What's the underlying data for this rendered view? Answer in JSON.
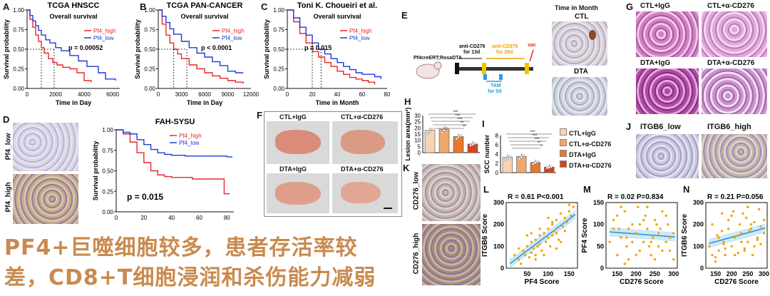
{
  "panels": {
    "A": {
      "letter": "A",
      "title": "TCGA HNSCC",
      "subtitle": "Overall survival",
      "xlabel": "Time in Day",
      "ylabel": "Survival probability",
      "pvalue": "p = 0.00052",
      "legend": [
        "Pf4_high",
        "Pf4_low"
      ],
      "xticks": [
        "0",
        "2000",
        "4000",
        "6000"
      ],
      "yticks": [
        "0.00",
        "0.25",
        "0.50",
        "0.75",
        "1.00"
      ]
    },
    "B": {
      "letter": "B",
      "title": "TCGA PAN-CANCER",
      "subtitle": "Overall survival",
      "xlabel": "Time in Day",
      "ylabel": "Survival probability",
      "pvalue": "p < 0.0001",
      "legend": [
        "Pf4_high",
        "Pf4_low"
      ],
      "xticks": [
        "0",
        "3000",
        "6000",
        "9000",
        "12000"
      ],
      "yticks": [
        "0.00",
        "0.25",
        "0.50",
        "0.75",
        "1.00"
      ]
    },
    "C": {
      "letter": "C",
      "title": "Toni K. Choueiri et al.",
      "subtitle": "Overall survival",
      "xlabel": "Time in Month",
      "ylabel": "Survival probability",
      "pvalue": "p = 0.015",
      "legend": [
        "Pf4_high",
        "Pf4_low"
      ],
      "xticks": [
        "0",
        "20",
        "40",
        "60",
        "80"
      ],
      "yticks": [
        "0.00",
        "0.25",
        "0.50",
        "0.75",
        "1.00"
      ]
    },
    "D": {
      "letter": "D",
      "title": "FAH-SYSU",
      "ylabel": "Survival probability",
      "pvalue": "p = 0.015",
      "legend": [
        "Pf4_high",
        "Pf4_low"
      ],
      "xticks": [
        "0",
        "20",
        "40",
        "60",
        "80"
      ],
      "yticks": [
        "0.00",
        "0.25",
        "0.50",
        "0.75",
        "1.00"
      ],
      "img_labels": [
        "Pf4_low",
        "Pf4_high"
      ]
    },
    "E": {
      "letter": "E",
      "strain": "Pf4creERT;RosaDTA",
      "anti1": "anti-CD276",
      "anti1b": "for 13d",
      "anti2": "anti-CD276",
      "anti2b": "for 26d",
      "tam": "TAM",
      "tamb": "for 5d",
      "sac": "sac",
      "time_label": "Time in Month",
      "img_labels": [
        "CTL",
        "DTA"
      ]
    },
    "F": {
      "letter": "F",
      "labels": [
        "CTL+IgG",
        "CTL+α-CD276",
        "DTA+IgG",
        "DTA+α-CD276"
      ]
    },
    "G": {
      "letter": "G",
      "labels": [
        "CTL+IgG",
        "CTL+α-CD276",
        "DTA+IgG",
        "DTA+α-CD276"
      ]
    },
    "H": {
      "letter": "H",
      "ylabel": "Lesion area(mm²)",
      "yticks": [
        "0",
        "5",
        "10",
        "15",
        "20",
        "25",
        "30"
      ],
      "stars": [
        "***",
        "***",
        "***",
        "**",
        "**"
      ]
    },
    "I": {
      "letter": "I",
      "ylabel": "SCC number",
      "yticks": [
        "0",
        "2",
        "4",
        "6",
        "8"
      ],
      "stars": [
        "***",
        "***",
        "***",
        "**",
        "*"
      ],
      "legend": [
        "CTL+IgG",
        "CTL+α-CD276",
        "DTA+IgG",
        "DTA+α-CD276"
      ]
    },
    "J": {
      "letter": "J",
      "labels": [
        "ITGB6_low",
        "ITGB6_high"
      ]
    },
    "K": {
      "letter": "K",
      "labels": [
        "CD276_low",
        "CD276_high"
      ]
    },
    "L": {
      "letter": "L",
      "stat": "R = 0.61    P<0.001",
      "xlabel": "PF4 Score",
      "ylabel": "ITGB6 Score",
      "xticks": [
        "50",
        "100",
        "150"
      ],
      "yticks": [
        "0",
        "100",
        "200",
        "300"
      ]
    },
    "M": {
      "letter": "M",
      "stat": "R = 0.02    P=0.834",
      "xlabel": "CD276 Score",
      "ylabel": "PF4 Score",
      "xticks": [
        "150",
        "200",
        "250",
        "300"
      ],
      "yticks": [
        "0",
        "50",
        "100",
        "150"
      ]
    },
    "N": {
      "letter": "N",
      "stat": "R = 0.21    P=0.056",
      "xlabel": "CD276 Score",
      "ylabel": "ITGB6 Score",
      "xticks": [
        "150",
        "200",
        "250",
        "300"
      ],
      "yticks": [
        "0",
        "100",
        "200",
        "300"
      ]
    }
  },
  "caption": {
    "line1": "PF4+巨噬细胞较多，患者存活率较",
    "line2": "差，CD8+T细胞浸润和杀伤能力减弱"
  },
  "colors": {
    "high": "#e8262a",
    "low": "#1f3bd6",
    "orange_dot": "#f4a300",
    "bar1": "#f6d3b3",
    "bar2": "#f1a66a",
    "bar3": "#e8762b",
    "bar4": "#d3451c",
    "fit": "#2f8fd8"
  },
  "chart_data": [
    {
      "type": "line",
      "id": "A",
      "title": "TCGA HNSCC",
      "xlabel": "Time in Day",
      "ylabel": "Survival probability",
      "xlim": [
        0,
        6500
      ],
      "ylim": [
        0,
        1
      ],
      "series": [
        {
          "name": "Pf4_high",
          "x": [
            0,
            200,
            400,
            600,
            800,
            1000,
            1200,
            1500,
            1800,
            2100,
            2500,
            3000,
            3500,
            4000,
            4500
          ],
          "values": [
            1,
            0.88,
            0.78,
            0.68,
            0.6,
            0.52,
            0.45,
            0.38,
            0.33,
            0.3,
            0.27,
            0.25,
            0.2,
            0.1,
            0.08
          ]
        },
        {
          "name": "Pf4_low",
          "x": [
            0,
            200,
            400,
            600,
            800,
            1000,
            1300,
            1600,
            2000,
            2400,
            3000,
            3600,
            4200,
            5000,
            5500,
            6200
          ],
          "values": [
            1,
            0.93,
            0.86,
            0.8,
            0.74,
            0.68,
            0.62,
            0.58,
            0.52,
            0.48,
            0.42,
            0.35,
            0.28,
            0.2,
            0.12,
            0.1
          ]
        }
      ]
    },
    {
      "type": "line",
      "id": "B",
      "title": "TCGA PAN-CANCER",
      "xlabel": "Time in Day",
      "ylabel": "Survival probability",
      "xlim": [
        0,
        12000
      ],
      "ylim": [
        0,
        1
      ],
      "series": [
        {
          "name": "Pf4_high",
          "x": [
            0,
            500,
            1000,
            1500,
            2000,
            2500,
            3000,
            4000,
            5000,
            6000,
            7000,
            8000,
            9000,
            10000,
            11000
          ],
          "values": [
            1,
            0.82,
            0.68,
            0.58,
            0.5,
            0.44,
            0.38,
            0.3,
            0.25,
            0.2,
            0.16,
            0.13,
            0.1,
            0.08,
            0.06
          ]
        },
        {
          "name": "Pf4_low",
          "x": [
            0,
            500,
            1000,
            1500,
            2000,
            3000,
            4000,
            5000,
            6000,
            7000,
            8000,
            9000,
            10000,
            11000
          ],
          "values": [
            1,
            0.92,
            0.84,
            0.76,
            0.69,
            0.6,
            0.52,
            0.45,
            0.4,
            0.34,
            0.29,
            0.22,
            0.2,
            0.2
          ]
        }
      ]
    },
    {
      "type": "line",
      "id": "C",
      "title": "Toni K. Choueiri et al.",
      "xlabel": "Time in Month",
      "ylabel": "Survival probability",
      "xlim": [
        0,
        80
      ],
      "ylim": [
        0,
        1
      ],
      "series": [
        {
          "name": "Pf4_high",
          "x": [
            0,
            5,
            10,
            15,
            20,
            25,
            30,
            35,
            40,
            45,
            50,
            55,
            60,
            65,
            70
          ],
          "values": [
            1,
            0.85,
            0.7,
            0.58,
            0.47,
            0.4,
            0.33,
            0.28,
            0.22,
            0.18,
            0.14,
            0.12,
            0.1,
            0.08,
            0.05
          ]
        },
        {
          "name": "Pf4_low",
          "x": [
            0,
            5,
            10,
            15,
            20,
            25,
            30,
            35,
            40,
            45,
            50,
            55,
            60,
            65,
            70,
            75
          ],
          "values": [
            1,
            0.9,
            0.78,
            0.68,
            0.58,
            0.5,
            0.44,
            0.38,
            0.33,
            0.28,
            0.24,
            0.2,
            0.18,
            0.18,
            0.15,
            0.12
          ]
        }
      ]
    },
    {
      "type": "line",
      "id": "D",
      "title": "FAH-SYSU",
      "ylabel": "Survival probability",
      "xlim": [
        0,
        85
      ],
      "ylim": [
        0,
        1
      ],
      "series": [
        {
          "name": "Pf4_high",
          "x": [
            0,
            5,
            10,
            15,
            20,
            25,
            30,
            35,
            40,
            45,
            50,
            55,
            60,
            65,
            70,
            75,
            78,
            82
          ],
          "values": [
            1,
            0.95,
            0.85,
            0.72,
            0.6,
            0.5,
            0.45,
            0.43,
            0.42,
            0.42,
            0.42,
            0.4,
            0.4,
            0.4,
            0.4,
            0.4,
            0.22,
            0.22
          ]
        },
        {
          "name": "Pf4_low",
          "x": [
            0,
            5,
            10,
            15,
            20,
            25,
            30,
            35,
            40,
            50,
            60,
            70,
            80,
            84
          ],
          "values": [
            1,
            0.97,
            0.95,
            0.88,
            0.82,
            0.76,
            0.72,
            0.7,
            0.69,
            0.68,
            0.68,
            0.68,
            0.67,
            0.67
          ]
        }
      ]
    },
    {
      "type": "bar",
      "id": "H",
      "ylabel": "Lesion area(mm²)",
      "categories": [
        "CTL+IgG",
        "CTL+α-CD276",
        "DTA+IgG",
        "DTA+α-CD276"
      ],
      "values": [
        18,
        19,
        13,
        7
      ],
      "ylim": [
        0,
        30
      ]
    },
    {
      "type": "bar",
      "id": "I",
      "ylabel": "SCC number",
      "categories": [
        "CTL+IgG",
        "CTL+α-CD276",
        "DTA+IgG",
        "DTA+α-CD276"
      ],
      "values": [
        3.3,
        3.5,
        2.2,
        1.2
      ],
      "ylim": [
        0,
        8
      ]
    },
    {
      "type": "scatter",
      "id": "L",
      "xlabel": "PF4 Score",
      "ylabel": "ITGB6 Score",
      "xlim": [
        0,
        170
      ],
      "ylim": [
        0,
        300
      ],
      "x": [
        20,
        30,
        35,
        40,
        45,
        50,
        55,
        60,
        60,
        65,
        70,
        70,
        75,
        80,
        80,
        85,
        90,
        95,
        100,
        100,
        105,
        110,
        110,
        115,
        120,
        120,
        125,
        130,
        135,
        140,
        145,
        150,
        155,
        160,
        30,
        50,
        70,
        90,
        110,
        130,
        150,
        100,
        120,
        80,
        60,
        140
      ],
      "values": [
        60,
        40,
        20,
        80,
        60,
        100,
        50,
        120,
        70,
        90,
        130,
        60,
        100,
        150,
        110,
        80,
        160,
        120,
        180,
        140,
        100,
        200,
        150,
        170,
        220,
        160,
        130,
        250,
        190,
        230,
        210,
        260,
        240,
        280,
        90,
        150,
        40,
        60,
        210,
        120,
        290,
        230,
        90,
        180,
        160,
        170
      ]
    },
    {
      "type": "scatter",
      "id": "M",
      "xlabel": "CD276 Score",
      "ylabel": "PF4 Score",
      "xlim": [
        120,
        310
      ],
      "ylim": [
        0,
        150
      ],
      "x": [
        130,
        140,
        150,
        155,
        160,
        170,
        175,
        180,
        190,
        200,
        205,
        210,
        220,
        225,
        230,
        240,
        245,
        250,
        260,
        265,
        270,
        280,
        285,
        290,
        300,
        150,
        170,
        190,
        210,
        230,
        250,
        270,
        290,
        160,
        180,
        200,
        220,
        240,
        260,
        280,
        300,
        140,
        175,
        235,
        255
      ],
      "values": [
        60,
        110,
        30,
        90,
        70,
        130,
        50,
        20,
        100,
        80,
        140,
        40,
        60,
        120,
        90,
        30,
        70,
        110,
        50,
        90,
        130,
        60,
        100,
        40,
        80,
        120,
        10,
        60,
        100,
        140,
        20,
        40,
        70,
        140,
        90,
        30,
        110,
        60,
        80,
        120,
        20,
        90,
        70,
        50,
        100
      ]
    },
    {
      "type": "scatter",
      "id": "N",
      "xlabel": "CD276 Score",
      "ylabel": "ITGB6 Score",
      "xlim": [
        120,
        310
      ],
      "ylim": [
        0,
        300
      ],
      "x": [
        130,
        140,
        150,
        155,
        160,
        170,
        175,
        180,
        190,
        200,
        205,
        210,
        220,
        225,
        230,
        240,
        245,
        250,
        260,
        265,
        270,
        280,
        285,
        290,
        300,
        150,
        170,
        190,
        210,
        230,
        250,
        270,
        290,
        160,
        180,
        200,
        220,
        240,
        260,
        280,
        300,
        140,
        175,
        235,
        255
      ],
      "values": [
        100,
        200,
        50,
        150,
        80,
        250,
        120,
        60,
        180,
        100,
        260,
        140,
        70,
        200,
        160,
        90,
        230,
        120,
        180,
        60,
        210,
        140,
        270,
        110,
        160,
        30,
        170,
        220,
        60,
        120,
        280,
        100,
        190,
        140,
        90,
        240,
        150,
        80,
        200,
        130,
        220,
        60,
        110,
        250,
        170
      ]
    }
  ]
}
